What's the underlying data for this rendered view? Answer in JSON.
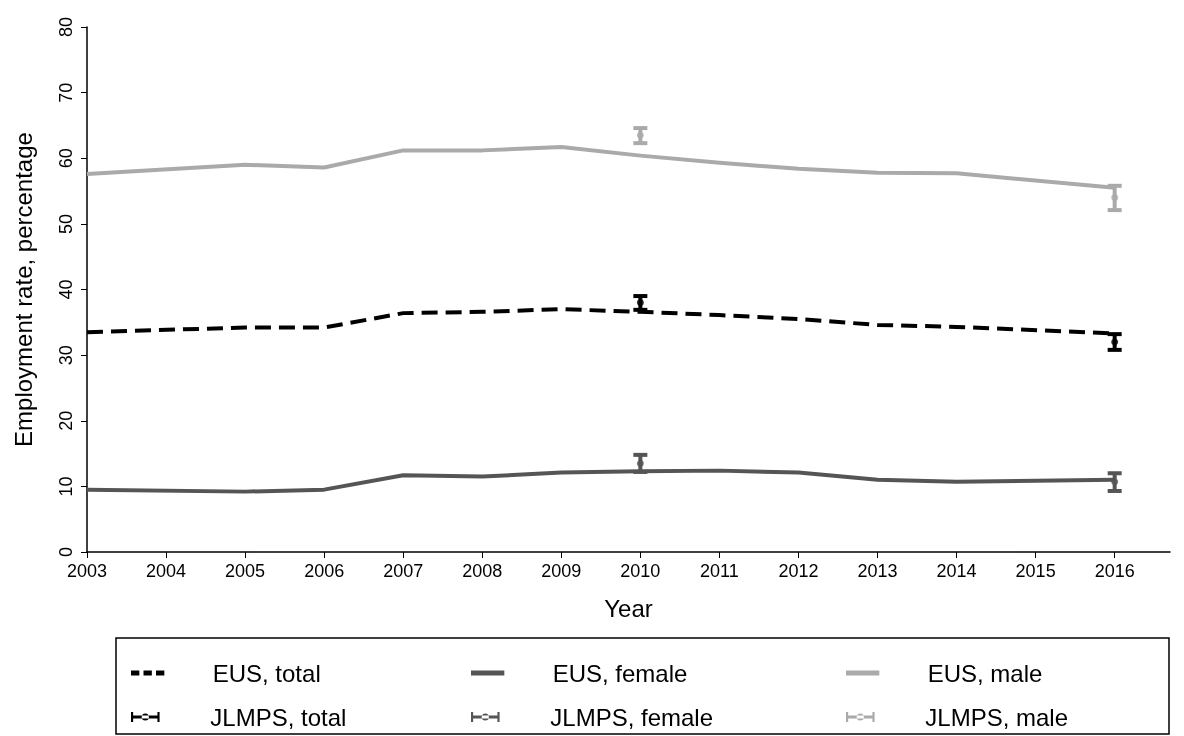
{
  "chart_data": {
    "type": "line",
    "xlabel": "Year",
    "ylabel": "Employment rate, percentage",
    "xlim": [
      2003,
      2016.7
    ],
    "xticks": [
      2003,
      2004,
      2005,
      2006,
      2007,
      2008,
      2009,
      2010,
      2011,
      2012,
      2013,
      2014,
      2015,
      2016
    ],
    "ylim": [
      0,
      80
    ],
    "yticks": [
      0,
      10,
      20,
      30,
      40,
      50,
      60,
      70,
      80
    ],
    "grid": false,
    "legend": "bottom",
    "marker": "none",
    "series": [
      {
        "name": "EUS, total",
        "color": "#000000",
        "line_style": "dashed",
        "x": [
          2003,
          2005,
          2006,
          2007,
          2008,
          2009,
          2010,
          2011,
          2012,
          2013,
          2014,
          2016
        ],
        "values": [
          33.5,
          34.2,
          34.2,
          36.4,
          36.6,
          37.0,
          36.6,
          36.1,
          35.5,
          34.6,
          34.3,
          33.3
        ]
      },
      {
        "name": "EUS, female",
        "color": "#555555",
        "line_style": "solid",
        "x": [
          2003,
          2005,
          2006,
          2007,
          2008,
          2009,
          2010,
          2011,
          2012,
          2013,
          2014,
          2016
        ],
        "values": [
          9.5,
          9.2,
          9.5,
          11.7,
          11.5,
          12.1,
          12.3,
          12.4,
          12.1,
          11.0,
          10.7,
          11.0
        ]
      },
      {
        "name": "EUS, male",
        "color": "#aaaaaa",
        "line_style": "solid",
        "x": [
          2003,
          2005,
          2006,
          2007,
          2008,
          2009,
          2010,
          2011,
          2012,
          2013,
          2014,
          2016
        ],
        "values": [
          57.6,
          59.0,
          58.6,
          61.2,
          61.2,
          61.7,
          60.4,
          59.3,
          58.4,
          57.8,
          57.7,
          55.5
        ]
      },
      {
        "name": "JLMPS, total",
        "color": "#000000",
        "type": "scatter",
        "marker": "circle",
        "x": [
          2010,
          2016
        ],
        "values": [
          38.0,
          32.0
        ],
        "errors": [
          [
            36.9,
            39.0
          ],
          [
            30.8,
            33.2
          ]
        ]
      },
      {
        "name": "JLMPS, female",
        "color": "#555555",
        "type": "scatter",
        "marker": "circle",
        "x": [
          2010,
          2016
        ],
        "values": [
          13.5,
          10.7
        ],
        "errors": [
          [
            12.2,
            14.8
          ],
          [
            9.3,
            12.0
          ]
        ]
      },
      {
        "name": "JLMPS, male",
        "color": "#aaaaaa",
        "type": "scatter",
        "marker": "circle",
        "x": [
          2010,
          2016
        ],
        "values": [
          63.5,
          54.0
        ],
        "errors": [
          [
            62.3,
            64.6
          ],
          [
            52.1,
            55.8
          ]
        ]
      }
    ]
  }
}
